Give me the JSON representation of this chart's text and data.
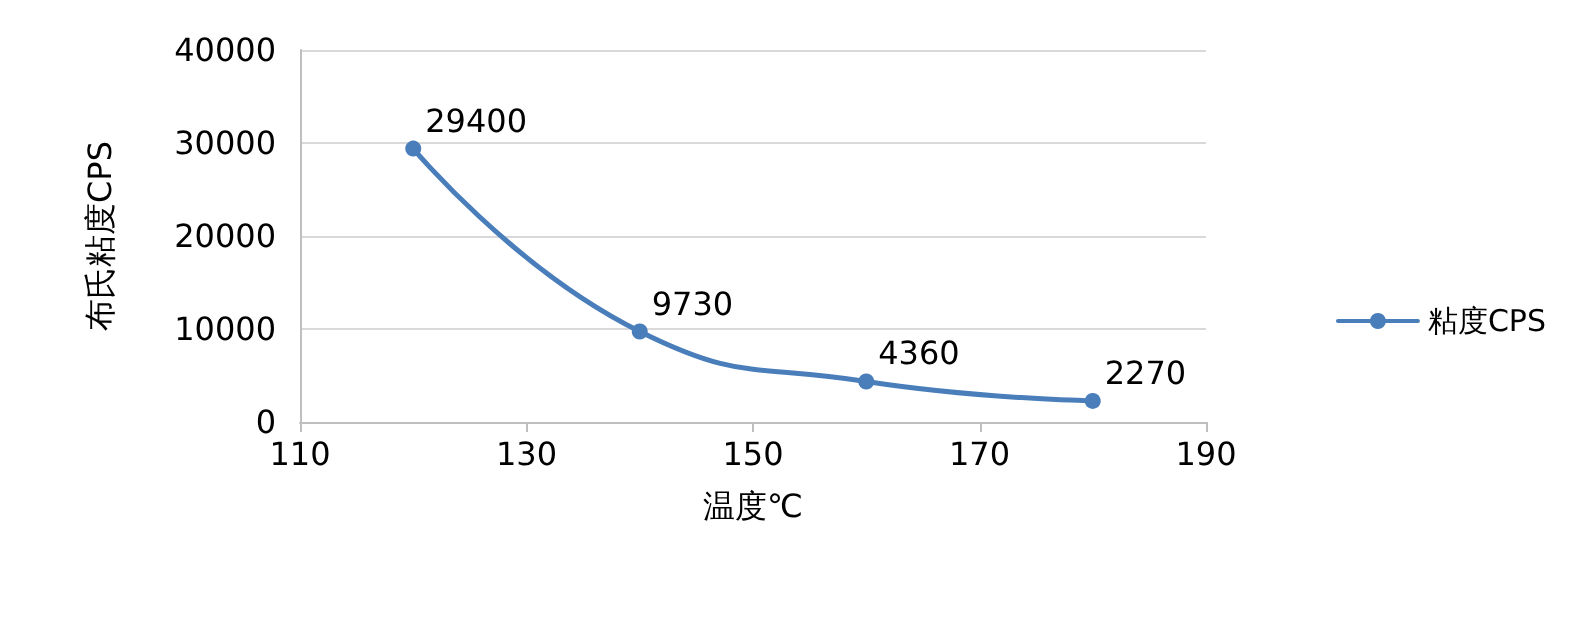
{
  "chart_data": {
    "type": "line",
    "xlabel": "温度℃",
    "ylabel": "布氏粘度CPS",
    "x": [
      120,
      140,
      160,
      180
    ],
    "series": [
      {
        "name": "粘度CPS",
        "color": "#4a7ebb",
        "values": [
          29400,
          9730,
          4360,
          2270
        ]
      }
    ],
    "xlim": [
      110,
      190
    ],
    "xticks": [
      110,
      130,
      150,
      170,
      190
    ],
    "ylim": [
      0,
      40000
    ],
    "yticks": [
      0,
      10000,
      20000,
      30000,
      40000
    ],
    "grid": "y",
    "legend": "right",
    "marker": "circle",
    "line_style": "solid",
    "data_labels": true
  }
}
